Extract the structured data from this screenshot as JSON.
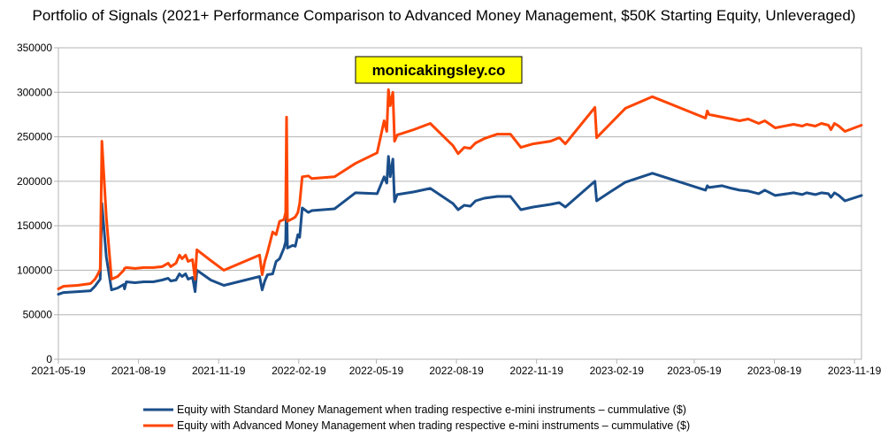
{
  "chart_data": {
    "type": "line",
    "title": "Portfolio of Signals (2021+ Performance Comparison to Advanced Money Management, $50K Starting Equity, Unleveraged)",
    "annotation": "monicakingsley.co",
    "xlabel": "",
    "ylabel": "",
    "xlim": [
      "2021-05-19",
      "2023-11-27"
    ],
    "ylim": [
      0,
      350000
    ],
    "x_ticks": [
      "2021-05-19",
      "2021-08-19",
      "2021-11-19",
      "2022-02-19",
      "2022-05-19",
      "2022-08-19",
      "2022-11-19",
      "2023-02-19",
      "2023-05-19",
      "2023-08-19",
      "2023-11-19"
    ],
    "y_ticks": [
      0,
      50000,
      100000,
      150000,
      200000,
      250000,
      300000,
      350000
    ],
    "grid": "horizontal",
    "legend_position": "bottom",
    "series": [
      {
        "name": "Equity with Standard Money Management when trading respective e-mini instruments – cummulative ($)",
        "color": "#1a4e8a",
        "points": [
          [
            "2021-05-19",
            73000
          ],
          [
            "2021-05-25",
            75000
          ],
          [
            "2021-06-10",
            76000
          ],
          [
            "2021-06-25",
            77000
          ],
          [
            "2021-06-30",
            82000
          ],
          [
            "2021-07-03",
            86000
          ],
          [
            "2021-07-06",
            90000
          ],
          [
            "2021-07-08",
            175000
          ],
          [
            "2021-07-13",
            115000
          ],
          [
            "2021-07-19",
            78000
          ],
          [
            "2021-07-26",
            80000
          ],
          [
            "2021-08-02",
            84000
          ],
          [
            "2021-08-03",
            79000
          ],
          [
            "2021-08-05",
            87000
          ],
          [
            "2021-08-15",
            86000
          ],
          [
            "2021-08-25",
            87000
          ],
          [
            "2021-09-05",
            87000
          ],
          [
            "2021-09-15",
            89000
          ],
          [
            "2021-09-22",
            91000
          ],
          [
            "2021-09-25",
            88000
          ],
          [
            "2021-10-01",
            89000
          ],
          [
            "2021-10-05",
            96000
          ],
          [
            "2021-10-08",
            93000
          ],
          [
            "2021-10-12",
            96000
          ],
          [
            "2021-10-15",
            90000
          ],
          [
            "2021-10-20",
            92000
          ],
          [
            "2021-10-23",
            76000
          ],
          [
            "2021-10-25",
            100000
          ],
          [
            "2021-11-10",
            89000
          ],
          [
            "2021-11-25",
            83000
          ],
          [
            "2022-01-05",
            93000
          ],
          [
            "2022-01-08",
            78000
          ],
          [
            "2022-01-11",
            88000
          ],
          [
            "2022-01-14",
            95000
          ],
          [
            "2022-01-20",
            96000
          ],
          [
            "2022-01-24",
            110000
          ],
          [
            "2022-01-28",
            113000
          ],
          [
            "2022-02-02",
            125000
          ],
          [
            "2022-02-04",
            132000
          ],
          [
            "2022-02-05",
            185000
          ],
          [
            "2022-02-06",
            125000
          ],
          [
            "2022-02-12",
            128000
          ],
          [
            "2022-02-15",
            127000
          ],
          [
            "2022-02-18",
            140000
          ],
          [
            "2022-02-20",
            137000
          ],
          [
            "2022-02-23",
            170000
          ],
          [
            "2022-03-02",
            165000
          ],
          [
            "2022-03-06",
            167000
          ],
          [
            "2022-04-01",
            169000
          ],
          [
            "2022-04-25",
            187000
          ],
          [
            "2022-05-20",
            186000
          ],
          [
            "2022-05-28",
            205000
          ],
          [
            "2022-05-31",
            198000
          ],
          [
            "2022-06-02",
            228000
          ],
          [
            "2022-06-04",
            205000
          ],
          [
            "2022-06-07",
            225000
          ],
          [
            "2022-06-09",
            177000
          ],
          [
            "2022-06-12",
            185000
          ],
          [
            "2022-07-01",
            188000
          ],
          [
            "2022-07-20",
            192000
          ],
          [
            "2022-08-15",
            175000
          ],
          [
            "2022-08-21",
            168000
          ],
          [
            "2022-08-28",
            173000
          ],
          [
            "2022-09-04",
            172000
          ],
          [
            "2022-09-10",
            178000
          ],
          [
            "2022-09-20",
            181000
          ],
          [
            "2022-10-05",
            183000
          ],
          [
            "2022-10-20",
            183000
          ],
          [
            "2022-11-01",
            168000
          ],
          [
            "2022-11-15",
            171000
          ],
          [
            "2022-12-05",
            174000
          ],
          [
            "2022-12-15",
            176000
          ],
          [
            "2022-12-22",
            171000
          ],
          [
            "2023-01-25",
            200000
          ],
          [
            "2023-01-27",
            178000
          ],
          [
            "2023-02-10",
            187000
          ],
          [
            "2023-03-01",
            199000
          ],
          [
            "2023-04-01",
            209000
          ],
          [
            "2023-06-01",
            190000
          ],
          [
            "2023-06-03",
            195000
          ],
          [
            "2023-06-05",
            193000
          ],
          [
            "2023-06-20",
            195000
          ],
          [
            "2023-07-01",
            192000
          ],
          [
            "2023-07-10",
            190000
          ],
          [
            "2023-07-20",
            189000
          ],
          [
            "2023-08-01",
            186000
          ],
          [
            "2023-08-08",
            190000
          ],
          [
            "2023-08-20",
            184000
          ],
          [
            "2023-09-10",
            187000
          ],
          [
            "2023-09-20",
            185000
          ],
          [
            "2023-09-25",
            187000
          ],
          [
            "2023-10-05",
            185000
          ],
          [
            "2023-10-12",
            187000
          ],
          [
            "2023-10-20",
            186000
          ],
          [
            "2023-10-23",
            182000
          ],
          [
            "2023-10-27",
            187000
          ],
          [
            "2023-11-01",
            184000
          ],
          [
            "2023-11-08",
            178000
          ],
          [
            "2023-11-27",
            184000
          ]
        ]
      },
      {
        "name": "Equity with Advanced Money Management when trading respective e-mini instruments – cummulative ($)",
        "color": "#ff4500",
        "points": [
          [
            "2021-05-19",
            79000
          ],
          [
            "2021-05-25",
            82000
          ],
          [
            "2021-06-10",
            83000
          ],
          [
            "2021-06-25",
            85000
          ],
          [
            "2021-06-30",
            90000
          ],
          [
            "2021-07-03",
            95000
          ],
          [
            "2021-07-06",
            101000
          ],
          [
            "2021-07-08",
            245000
          ],
          [
            "2021-07-13",
            160000
          ],
          [
            "2021-07-19",
            90000
          ],
          [
            "2021-07-26",
            93000
          ],
          [
            "2021-08-02",
            100000
          ],
          [
            "2021-08-03",
            102000
          ],
          [
            "2021-08-05",
            103000
          ],
          [
            "2021-08-15",
            102000
          ],
          [
            "2021-08-25",
            103000
          ],
          [
            "2021-09-05",
            103000
          ],
          [
            "2021-09-15",
            104000
          ],
          [
            "2021-09-22",
            108000
          ],
          [
            "2021-09-25",
            104000
          ],
          [
            "2021-10-01",
            108000
          ],
          [
            "2021-10-05",
            117000
          ],
          [
            "2021-10-08",
            113000
          ],
          [
            "2021-10-12",
            117000
          ],
          [
            "2021-10-15",
            110000
          ],
          [
            "2021-10-20",
            112000
          ],
          [
            "2021-10-23",
            90000
          ],
          [
            "2021-10-25",
            123000
          ],
          [
            "2021-11-10",
            111000
          ],
          [
            "2021-11-25",
            100000
          ],
          [
            "2022-01-05",
            117000
          ],
          [
            "2022-01-08",
            95000
          ],
          [
            "2022-01-11",
            110000
          ],
          [
            "2022-01-14",
            120000
          ],
          [
            "2022-01-20",
            143000
          ],
          [
            "2022-01-24",
            140000
          ],
          [
            "2022-01-28",
            155000
          ],
          [
            "2022-02-02",
            157000
          ],
          [
            "2022-02-04",
            165000
          ],
          [
            "2022-02-05",
            272000
          ],
          [
            "2022-02-06",
            155000
          ],
          [
            "2022-02-12",
            158000
          ],
          [
            "2022-02-15",
            160000
          ],
          [
            "2022-02-18",
            165000
          ],
          [
            "2022-02-20",
            175000
          ],
          [
            "2022-02-23",
            205000
          ],
          [
            "2022-03-02",
            206000
          ],
          [
            "2022-03-06",
            203000
          ],
          [
            "2022-04-01",
            205000
          ],
          [
            "2022-04-25",
            220000
          ],
          [
            "2022-05-20",
            232000
          ],
          [
            "2022-05-28",
            268000
          ],
          [
            "2022-05-31",
            256000
          ],
          [
            "2022-06-02",
            303000
          ],
          [
            "2022-06-04",
            285000
          ],
          [
            "2022-06-07",
            300000
          ],
          [
            "2022-06-09",
            245000
          ],
          [
            "2022-06-12",
            252000
          ],
          [
            "2022-07-01",
            258000
          ],
          [
            "2022-07-20",
            265000
          ],
          [
            "2022-08-15",
            240000
          ],
          [
            "2022-08-21",
            231000
          ],
          [
            "2022-08-28",
            238000
          ],
          [
            "2022-09-04",
            237000
          ],
          [
            "2022-09-10",
            243000
          ],
          [
            "2022-09-20",
            248000
          ],
          [
            "2022-10-05",
            253000
          ],
          [
            "2022-10-20",
            253000
          ],
          [
            "2022-11-01",
            238000
          ],
          [
            "2022-11-15",
            242000
          ],
          [
            "2022-12-05",
            245000
          ],
          [
            "2022-12-15",
            249000
          ],
          [
            "2022-12-22",
            242000
          ],
          [
            "2023-01-25",
            283000
          ],
          [
            "2023-01-27",
            249000
          ],
          [
            "2023-02-10",
            263000
          ],
          [
            "2023-03-01",
            282000
          ],
          [
            "2023-04-01",
            295000
          ],
          [
            "2023-06-01",
            271000
          ],
          [
            "2023-06-03",
            279000
          ],
          [
            "2023-06-05",
            275000
          ],
          [
            "2023-06-20",
            272000
          ],
          [
            "2023-07-01",
            270000
          ],
          [
            "2023-07-10",
            268000
          ],
          [
            "2023-07-20",
            270000
          ],
          [
            "2023-08-01",
            265000
          ],
          [
            "2023-08-08",
            268000
          ],
          [
            "2023-08-20",
            260000
          ],
          [
            "2023-09-10",
            264000
          ],
          [
            "2023-09-20",
            262000
          ],
          [
            "2023-09-25",
            264000
          ],
          [
            "2023-10-05",
            262000
          ],
          [
            "2023-10-12",
            265000
          ],
          [
            "2023-10-20",
            263000
          ],
          [
            "2023-10-23",
            258000
          ],
          [
            "2023-10-27",
            265000
          ],
          [
            "2023-11-01",
            262000
          ],
          [
            "2023-11-08",
            256000
          ],
          [
            "2023-11-27",
            263000
          ]
        ]
      }
    ]
  }
}
